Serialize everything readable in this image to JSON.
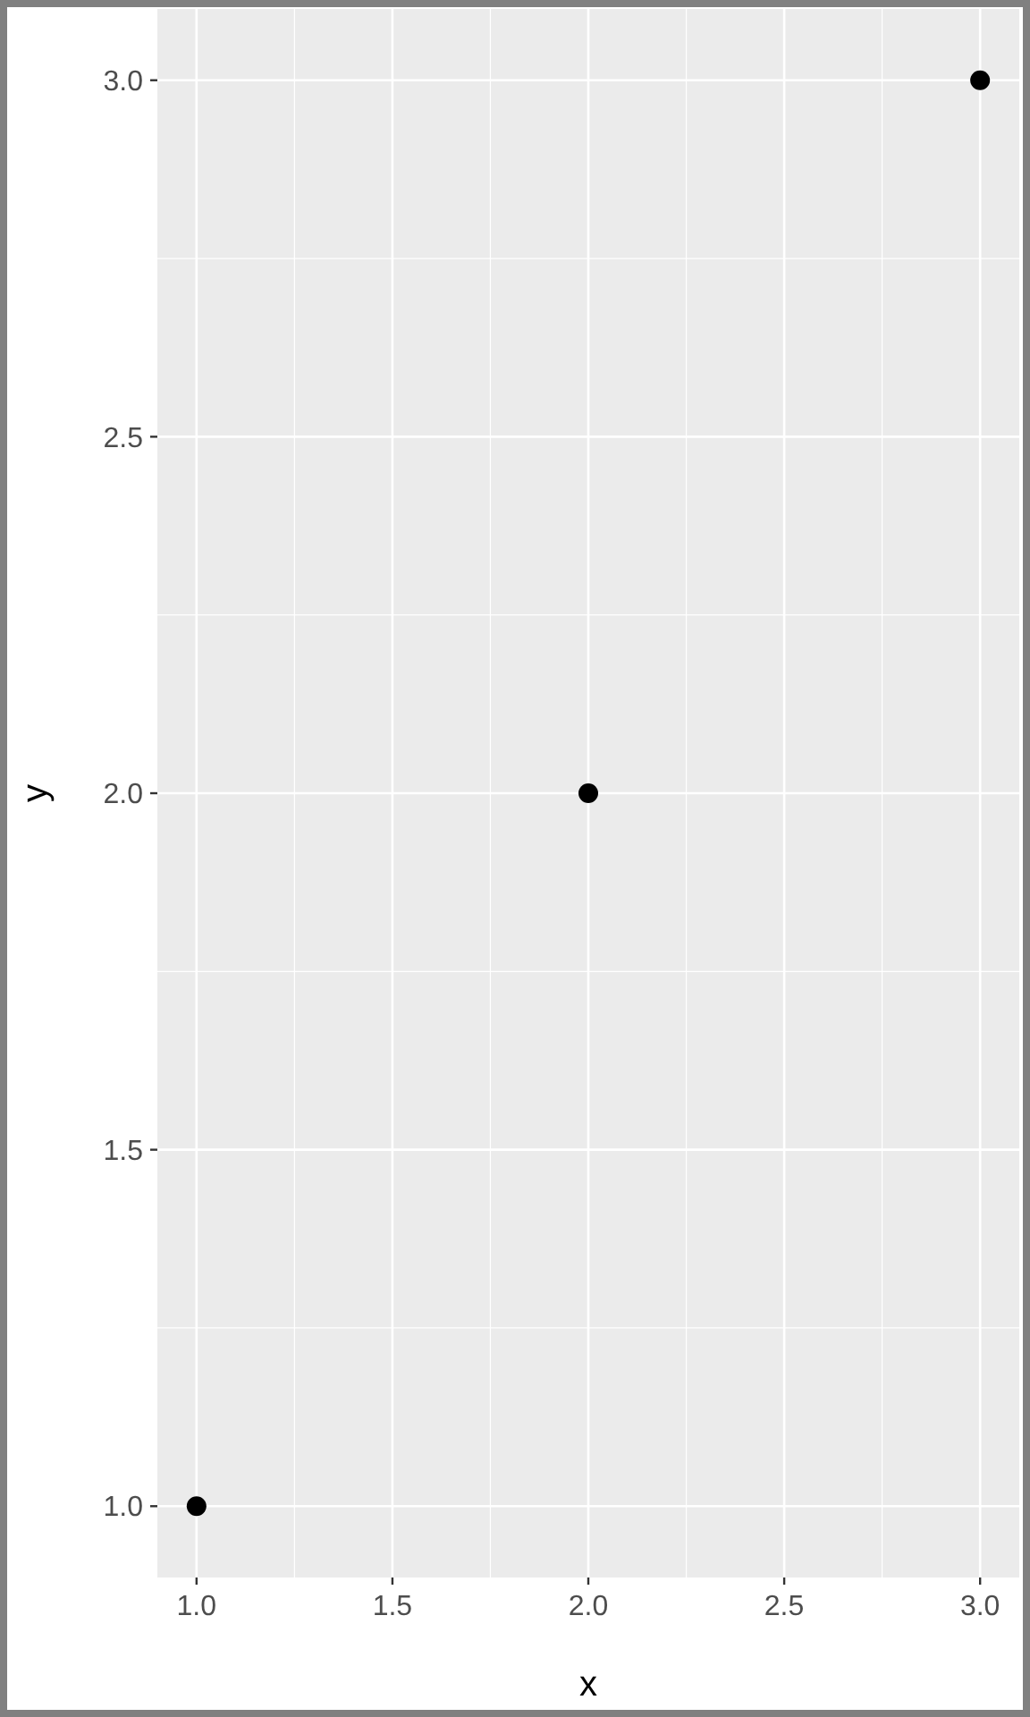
{
  "chart_data": {
    "type": "scatter",
    "xlabel": "x",
    "ylabel": "y",
    "x": [
      1,
      2,
      3
    ],
    "values": [
      1,
      2,
      3
    ],
    "color": "#000000",
    "xlim": [
      0.9,
      3.1
    ],
    "ylim": [
      0.9,
      3.1
    ],
    "xticks": [
      {
        "value": 1,
        "label": "1.0"
      },
      {
        "value": 1.5,
        "label": "1.5"
      },
      {
        "value": 2,
        "label": "2.0"
      },
      {
        "value": 2.5,
        "label": "2.5"
      },
      {
        "value": 3,
        "label": "3.0"
      }
    ],
    "yticks": [
      {
        "value": 1,
        "label": "1.0"
      },
      {
        "value": 1.5,
        "label": "1.5"
      },
      {
        "value": 2,
        "label": "2.0"
      },
      {
        "value": 2.5,
        "label": "2.5"
      },
      {
        "value": 3,
        "label": "3.0"
      }
    ],
    "grid": true,
    "marker": "circle"
  }
}
